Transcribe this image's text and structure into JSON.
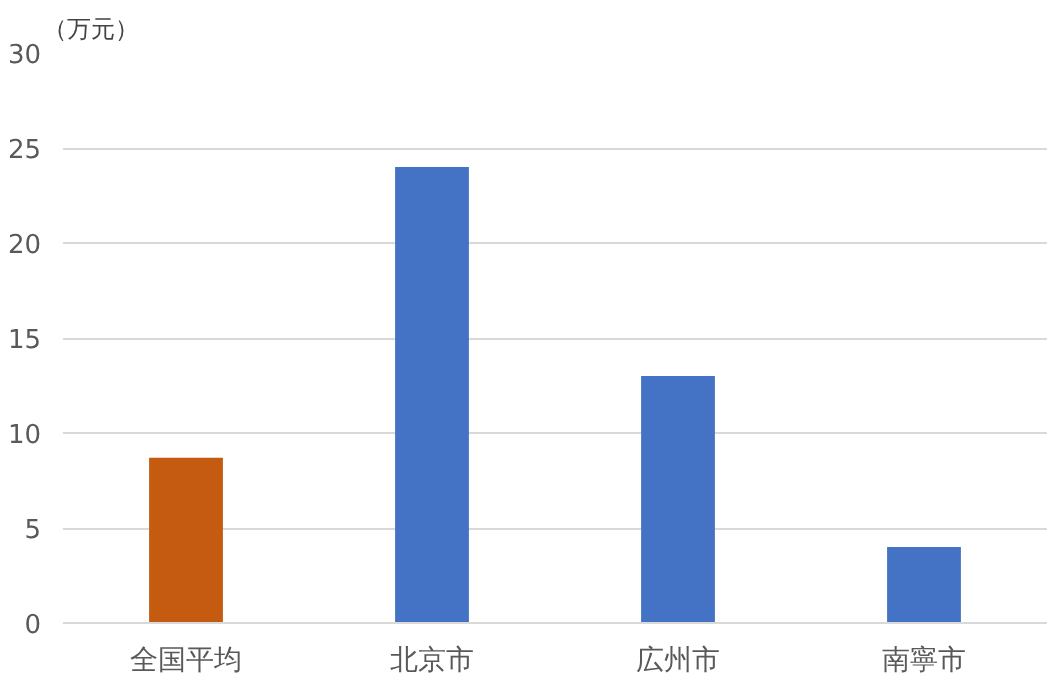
{
  "chart_data": {
    "type": "bar",
    "ylabel": "（万元）",
    "categories": [
      "全国平均",
      "北京市",
      "広州市",
      "南寧市"
    ],
    "values": [
      8.7,
      24,
      13,
      4
    ],
    "colors": [
      "#c55a11",
      "#4472c4",
      "#4472c4",
      "#4472c4"
    ],
    "ylim": [
      0,
      30
    ],
    "yticks": [
      0,
      5,
      10,
      15,
      20,
      25,
      30
    ],
    "grid": "y"
  }
}
